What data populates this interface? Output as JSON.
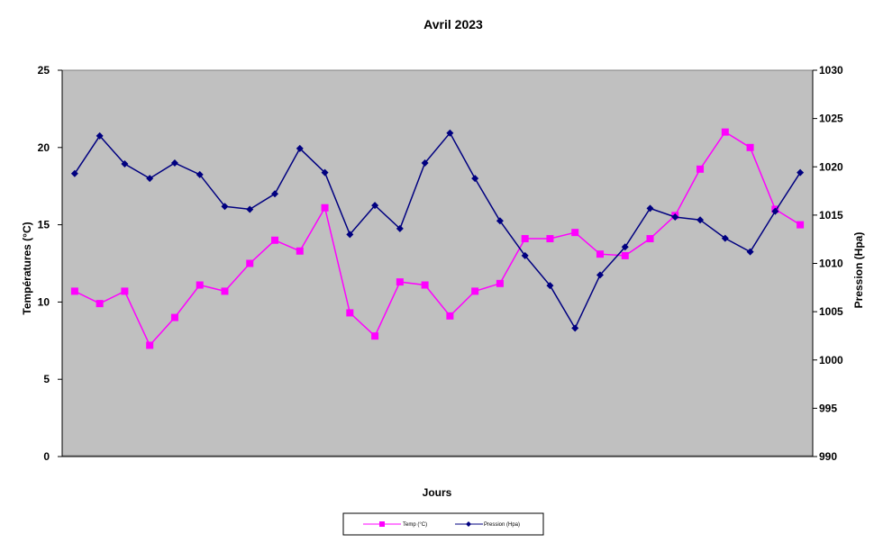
{
  "chart_data": {
    "type": "line",
    "title": "Avril 2023",
    "xlabel": "Jours",
    "ylabel_left": "Températures (°C)",
    "ylabel_right": "Pression (Hpa)",
    "ylim_left": [
      0,
      25
    ],
    "ylim_right": [
      990,
      1030
    ],
    "yticks_left": [
      "0",
      "5",
      "10",
      "15",
      "20",
      "25"
    ],
    "yticks_right": [
      "990",
      "995",
      "1000",
      "1005",
      "1010",
      "1015",
      "1020",
      "1025",
      "1030"
    ],
    "x": [
      1,
      2,
      3,
      4,
      5,
      6,
      7,
      8,
      9,
      10,
      11,
      12,
      13,
      14,
      15,
      16,
      17,
      18,
      19,
      20,
      21,
      22,
      23,
      24,
      25,
      26,
      27,
      28,
      29,
      30
    ],
    "grid": false,
    "plot_background": "#C0C0C0",
    "legend_position": "bottom",
    "series": [
      {
        "name": "Temp (°C)",
        "axis": "left",
        "color": "#FF00FF",
        "marker": "square",
        "values": [
          10.7,
          9.9,
          10.7,
          7.2,
          9.0,
          11.1,
          10.7,
          12.5,
          14.0,
          13.3,
          16.1,
          9.3,
          7.8,
          11.3,
          11.1,
          9.1,
          10.7,
          11.2,
          14.1,
          14.1,
          14.5,
          13.1,
          13.0,
          14.1,
          15.6,
          18.6,
          21.0,
          20.0,
          16.0,
          15.0
        ]
      },
      {
        "name": "Pression (Hpa)",
        "axis": "right",
        "color": "#000080",
        "marker": "diamond",
        "values": [
          1019.3,
          1023.2,
          1020.3,
          1018.8,
          1020.4,
          1019.2,
          1015.9,
          1015.6,
          1017.2,
          1021.9,
          1019.4,
          1013.0,
          1016.0,
          1013.6,
          1020.4,
          1023.5,
          1018.8,
          1014.4,
          1010.8,
          1007.7,
          1003.3,
          1008.8,
          1011.7,
          1015.7,
          1014.8,
          1014.5,
          1012.6,
          1011.2,
          1015.4,
          1019.4
        ]
      }
    ]
  }
}
